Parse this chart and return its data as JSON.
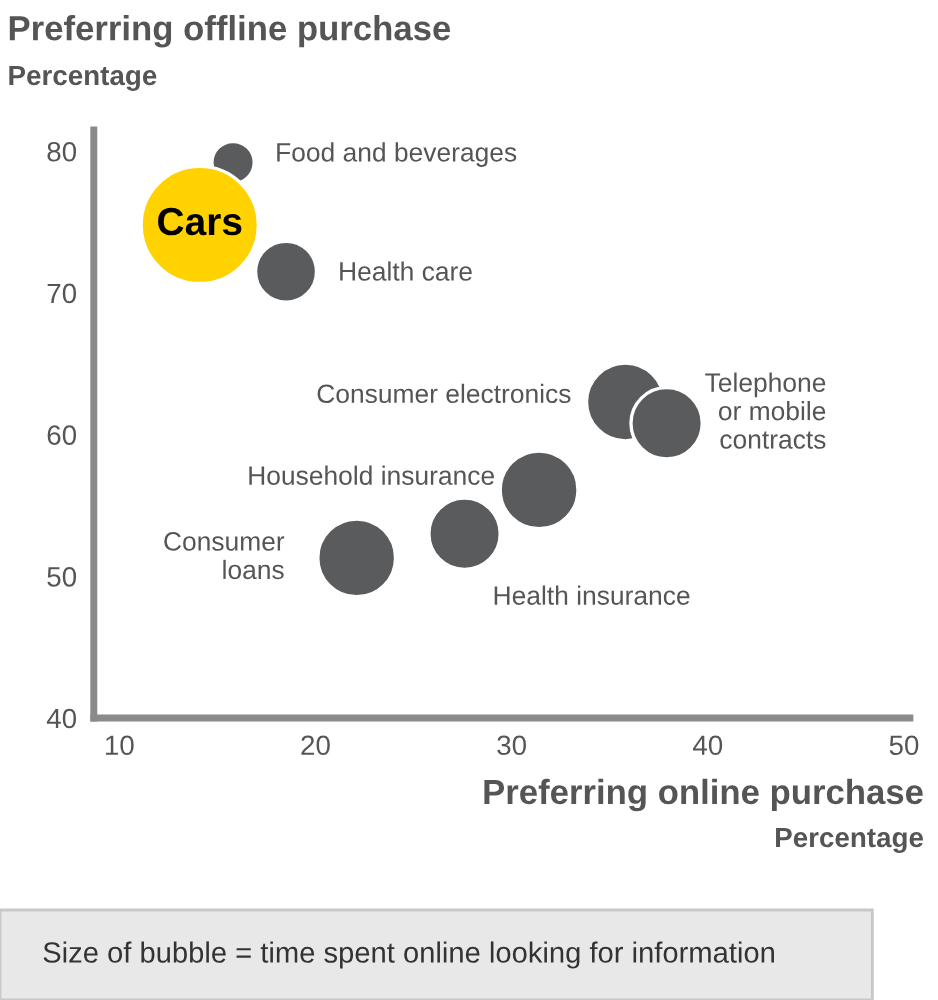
{
  "chart_data": {
    "type": "bubble",
    "title": "Preferring offline purchase",
    "ylabel": "Percentage",
    "xlabel": "Preferring online purchase",
    "x": [
      15.8,
      14.1,
      18.5,
      35.8,
      37.9,
      31.4,
      27.6,
      22.1
    ],
    "values": [
      79.2,
      74.8,
      71.5,
      62.3,
      60.8,
      56.1,
      53.0,
      51.3
    ],
    "sizes": [
      0.13,
      1,
      0.27,
      0.44,
      0.37,
      0.44,
      0.37,
      0.44
    ],
    "colors": [
      "#5a5b5d",
      "#ffd200",
      "#5a5b5d",
      "#5a5b5d",
      "#5a5b5d",
      "#5a5b5d",
      "#5a5b5d",
      "#5a5b5d"
    ],
    "xlim": [
      8.7,
      50.3
    ],
    "ylim": [
      40,
      81.5
    ],
    "xticks": [
      10,
      20,
      30,
      40,
      50
    ],
    "yticks": [
      40,
      50,
      60,
      70,
      80
    ],
    "grid": false,
    "annotations": [
      {
        "text": "Food and beverages",
        "x": 15.8,
        "y": 79.2
      },
      {
        "text": "Cars",
        "x": 14.1,
        "y": 74.8
      },
      {
        "text": "Health care",
        "x": 18.5,
        "y": 71.5
      },
      {
        "text": "Consumer electronics",
        "x": 35.8,
        "y": 62.3
      },
      {
        "text": "Telephone\nor mobile\ncontracts",
        "x": 37.9,
        "y": 60.8
      },
      {
        "text": "Household insurance",
        "x": 31.4,
        "y": 56.1
      },
      {
        "text": "Health insurance",
        "x": 27.6,
        "y": 53.0
      },
      {
        "text": "Consumer\nloans",
        "x": 22.1,
        "y": 51.3
      },
      "Percentage",
      "Size of bubble = time spent online looking for information"
    ]
  }
}
